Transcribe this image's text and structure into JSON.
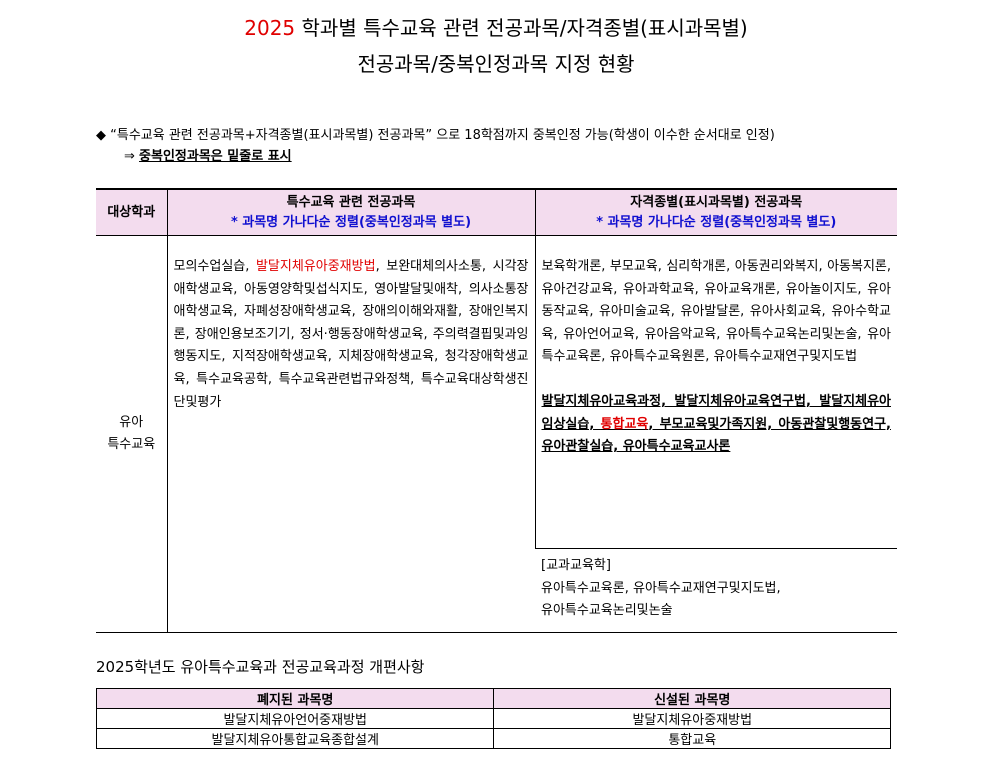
{
  "title": {
    "year": "2025",
    "line1_rest": " 학과별 특수교육 관련 전공과목/자격종별(표시과목별)",
    "line2": "전공과목/중복인정과목 지정 현황",
    "year_color": "#e00000"
  },
  "notes": {
    "bullet_icon": "diamond-bullet",
    "line1": "“특수교육 관련 전공과목+자격종별(표시과목별) 전공과목” 으로 18학점까지 중복인정 가능(학생이 이수한 순서대로 인정)",
    "arrow": "⇒",
    "line2": "중복인정과목은 밑줄로 표시"
  },
  "main_table": {
    "headers": {
      "dept": "대상학과",
      "col1_title": "특수교육 관련 전공과목",
      "col1_sub": "* 과목명 가나다순 정렬(중복인정과목 별도)",
      "col2_title": "자격종별(표시과목별)  전공과목",
      "col2_sub": "* 과목명 가나다순 정렬(중복인정과목 별도)"
    },
    "dept_line1": "유아",
    "dept_line2": "특수교육",
    "col1": {
      "a": "모의수업실습, ",
      "red": "발달지체유아중재방법",
      "b": ", 보완대체의사소통, 시각장애학생교육, 아동영양학및섭식지도, 영아발달및애착, 의사소통장애학생교육, 자폐성장애학생교육, 장애의이해와재활, 장애인복지론, 장애인용보조기기, 정서·행동장애학생교육, 주의력결핍및과잉행동지도, 지적장애학생교육, 지체장애학생교육, 청각장애학생교육, 특수교육공학, 특수교육관련법규와정책, 특수교육대상학생진단및평가"
    },
    "col2_regular": "보육학개론, 부모교육, 심리학개론, 아동권리와복지, 아동복지론, 유아건강교육, 유아과학교육, 유아교육개론, 유아놀이지도, 유아동작교육, 유아미술교육, 유아발달론, 유아사회교육, 유아수학교육, 유아언어교육, 유아음악교육, 유아특수교육논리및논술, 유아특수교육론, 유아특수교육원론, 유아특수교재연구및지도법",
    "col2_dup": {
      "a": "발달지체유아교육과정, 발달지체유아교육연구법, 발달지체유아임상실습, ",
      "red": "통합교육",
      "b": ", 부모교육및가족지원, 아동관찰및행동연구, 유아관찰실습, 유아특수교육교사론"
    },
    "col2_subject": {
      "label": "[교과교육학]",
      "line1": "유아특수교육론, 유아특수교재연구및지도법,",
      "line2": "유아특수교육논리및논술"
    }
  },
  "changes": {
    "title": "2025학년도 유아특수교육과 전공교육과정 개편사항",
    "headers": [
      "폐지된 과목명",
      "신설된 과목명"
    ],
    "rows": [
      [
        "발달지체유아언어중재방법",
        "발달지체유아중재방법"
      ],
      [
        "발달지체유아통합교육종합설계",
        "통합교육"
      ]
    ]
  },
  "colors": {
    "header_bg": "#f3dcee",
    "highlight_red": "#e00000",
    "note_blue": "#1010d0"
  }
}
